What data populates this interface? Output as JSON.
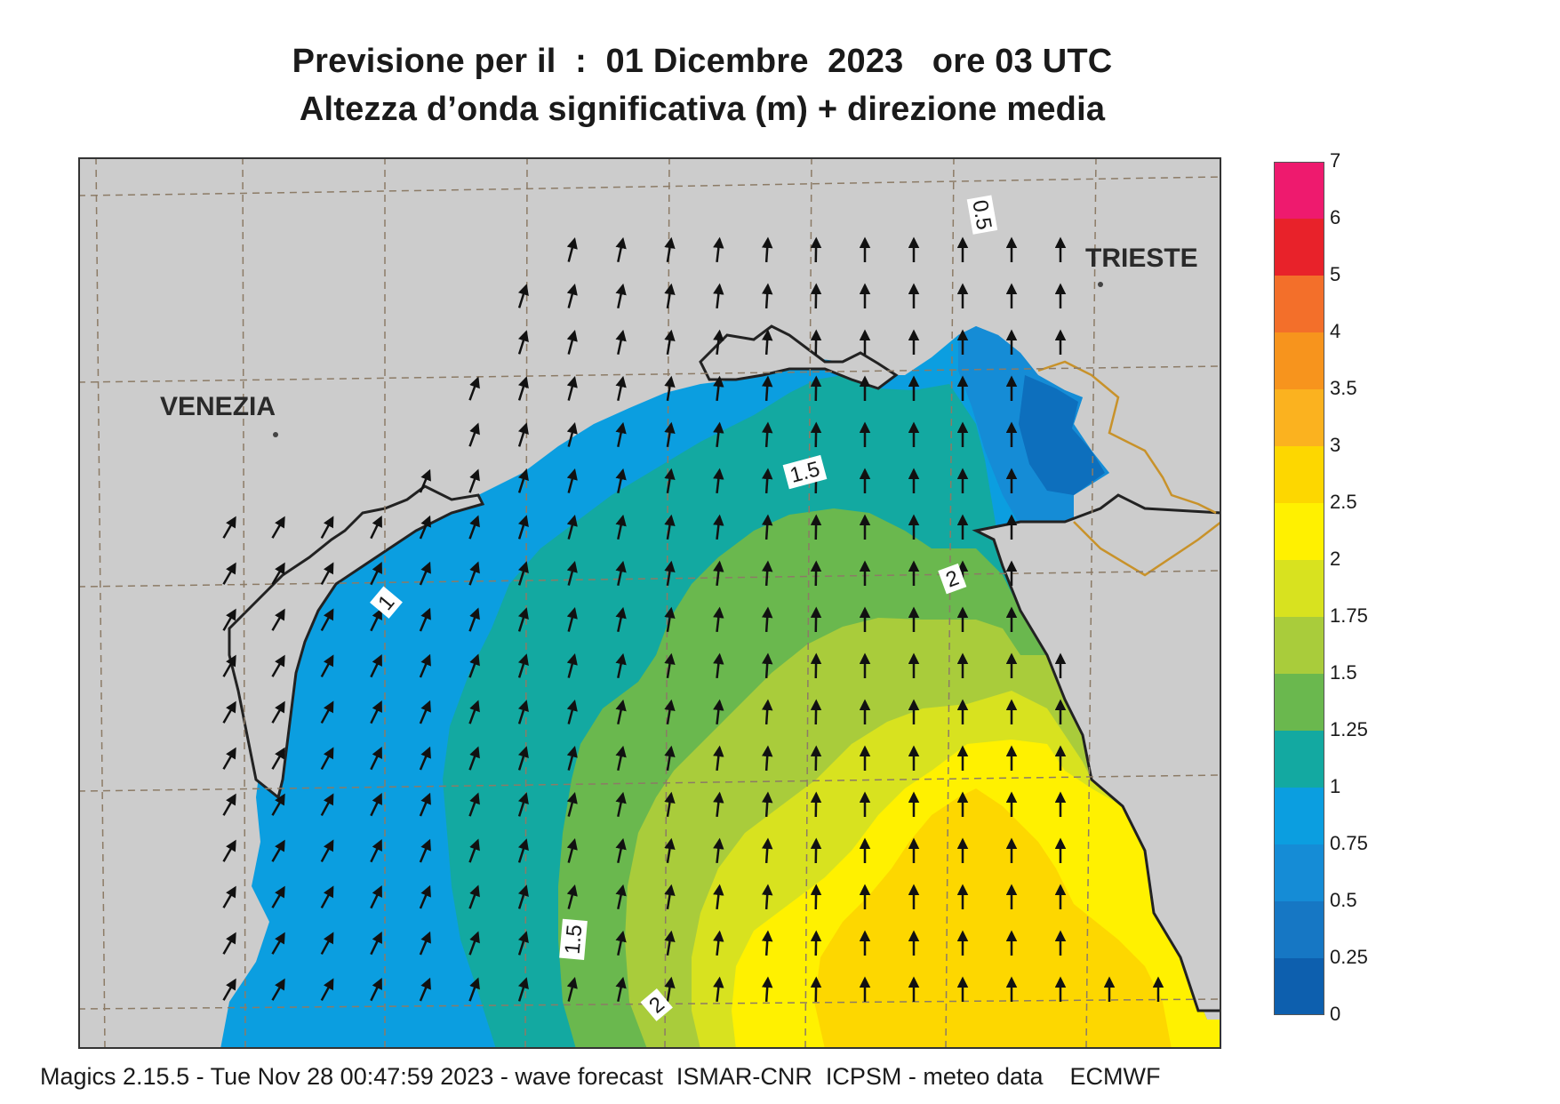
{
  "title_line1": "Previsione per il  :  01 Dicembre  2023   ore 03 UTC",
  "title_line2": "Altezza d’onda significativa (m) + direzione media",
  "cities": {
    "venezia": "VENEZIA",
    "trieste": "TRIESTE"
  },
  "contour_labels": [
    "0.5",
    "1.5",
    "2",
    "1",
    "1.5",
    "2"
  ],
  "legend": {
    "levels": [
      "7",
      "6",
      "5",
      "4",
      "3.5",
      "3",
      "2.5",
      "2",
      "1.75",
      "1.5",
      "1.25",
      "1",
      "0.75",
      "0.5",
      "0.25",
      "0"
    ],
    "colors": [
      "#ee1a6e",
      "#e8222a",
      "#f36f2a",
      "#f7941d",
      "#fbb21f",
      "#fdd700",
      "#fff100",
      "#d8e21f",
      "#a9cc3b",
      "#6ab84e",
      "#13a9a1",
      "#0b9ee0",
      "#158cd6",
      "#1677c4",
      "#0d5fae"
    ]
  },
  "footer": "Magics 2.15.5 - Tue Nov 28 00:47:59 2023 - wave forecast  ISMAR-CNR  ICPSM - meteo data    ECMWF",
  "colors": {
    "land": "#cccccc",
    "grid": "#8c7b66",
    "border": "#c8922a"
  }
}
